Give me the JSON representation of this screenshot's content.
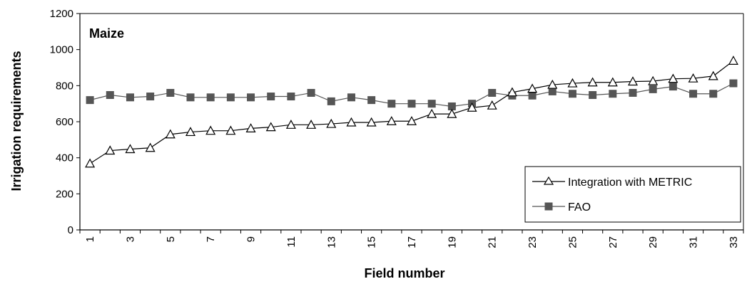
{
  "chart_data": {
    "type": "line",
    "annotation": "Maize",
    "xlabel": "Field number",
    "ylabel": "Irrigation requirements",
    "ylim": [
      0,
      1200
    ],
    "yticks": [
      0,
      200,
      400,
      600,
      800,
      1000,
      1200
    ],
    "x": [
      1,
      2,
      3,
      4,
      5,
      6,
      7,
      8,
      9,
      10,
      11,
      12,
      13,
      14,
      15,
      16,
      17,
      18,
      19,
      20,
      21,
      22,
      23,
      24,
      25,
      26,
      27,
      28,
      29,
      30,
      31,
      32,
      33
    ],
    "xtick_labels": [
      "1",
      "3",
      "5",
      "7",
      "9",
      "11",
      "13",
      "15",
      "17",
      "19",
      "21",
      "23",
      "25",
      "27",
      "29",
      "31",
      "33"
    ],
    "grid": false,
    "legend_position": "bottom-right",
    "series": [
      {
        "name": "Integration with METRIC",
        "marker": "triangle-open",
        "color": "#000000",
        "values": [
          368,
          440,
          448,
          455,
          530,
          543,
          550,
          550,
          563,
          570,
          583,
          583,
          588,
          596,
          596,
          603,
          603,
          643,
          643,
          678,
          690,
          763,
          783,
          805,
          813,
          818,
          818,
          823,
          825,
          838,
          840,
          853,
          938
        ]
      },
      {
        "name": "FAO",
        "marker": "square-filled",
        "color": "#555555",
        "values": [
          720,
          748,
          735,
          740,
          760,
          735,
          735,
          735,
          735,
          740,
          740,
          760,
          713,
          735,
          720,
          700,
          700,
          700,
          685,
          700,
          760,
          745,
          745,
          768,
          755,
          748,
          755,
          760,
          780,
          795,
          755,
          755,
          813
        ]
      }
    ]
  }
}
